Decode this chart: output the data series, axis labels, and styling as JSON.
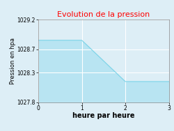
{
  "title": "Evolution de la pression",
  "title_color": "#ff0000",
  "xlabel": "heure par heure",
  "ylabel": "Pression en hpa",
  "x": [
    0,
    1,
    2,
    3
  ],
  "y": [
    1028.85,
    1028.85,
    1028.15,
    1028.15
  ],
  "ylim": [
    1027.8,
    1029.2
  ],
  "xlim": [
    0,
    3
  ],
  "xticks": [
    0,
    1,
    2,
    3
  ],
  "yticks": [
    1027.8,
    1028.3,
    1028.7,
    1029.2
  ],
  "line_color": "#7dd4e8",
  "fill_color": "#b8e4f2",
  "background_color": "#ddeef6",
  "plot_bg": "#ddeef6",
  "grid_color": "#ffffff",
  "title_fontsize": 8,
  "label_fontsize": 6,
  "tick_fontsize": 5.5
}
